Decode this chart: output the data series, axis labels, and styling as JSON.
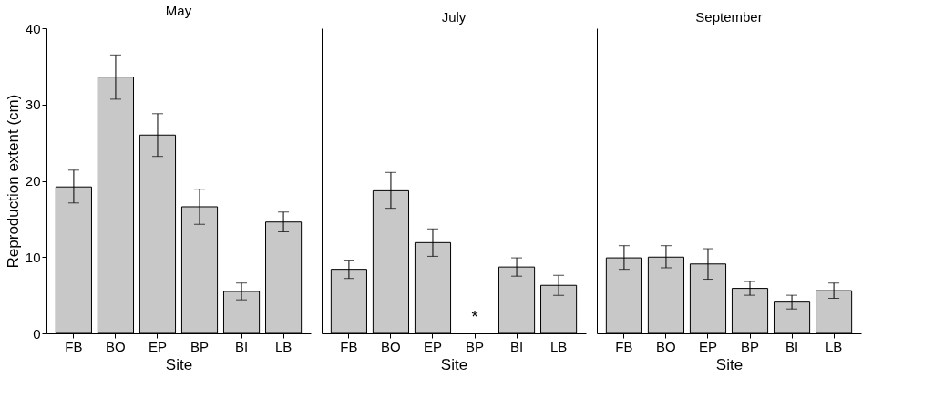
{
  "chart_data": [
    {
      "type": "bar",
      "title": "May",
      "xlabel": "Site",
      "ylabel": "Reproduction extent (cm)",
      "categories": [
        "FB",
        "BO",
        "EP",
        "BP",
        "BI",
        "LB"
      ],
      "values": [
        19.2,
        33.6,
        26.0,
        16.6,
        5.5,
        14.6
      ],
      "errors": [
        [
          17.1,
          21.4
        ],
        [
          30.7,
          36.5
        ],
        [
          23.2,
          28.8
        ],
        [
          14.3,
          18.9
        ],
        [
          4.4,
          6.6
        ],
        [
          13.3,
          15.9
        ]
      ],
      "color": "#c8c8c8",
      "ylim": [
        0,
        40
      ],
      "yticks": [
        0,
        10,
        20,
        30,
        40
      ],
      "grid": false
    },
    {
      "type": "bar",
      "title": "July",
      "xlabel": "Site",
      "categories": [
        "FB",
        "BO",
        "EP",
        "BP",
        "BI",
        "LB"
      ],
      "values": [
        8.4,
        18.7,
        11.9,
        null,
        8.7,
        6.3
      ],
      "errors": [
        [
          7.2,
          9.6
        ],
        [
          16.4,
          21.1
        ],
        [
          10.1,
          13.7
        ],
        null,
        [
          7.5,
          9.9
        ],
        [
          5.0,
          7.6
        ]
      ],
      "color": "#c8c8c8",
      "ylim": [
        0,
        40
      ],
      "yticks": [
        0,
        10,
        20,
        30,
        40
      ],
      "tick_labels": "x",
      "grid": false,
      "annotations": [
        "*"
      ]
    },
    {
      "type": "bar",
      "title": "September",
      "xlabel": "Site",
      "categories": [
        "FB",
        "BO",
        "EP",
        "BP",
        "BI",
        "LB"
      ],
      "values": [
        9.9,
        10.0,
        9.1,
        5.9,
        4.1,
        5.6
      ],
      "errors": [
        [
          8.4,
          11.5
        ],
        [
          8.6,
          11.5
        ],
        [
          7.1,
          11.1
        ],
        [
          5.0,
          6.8
        ],
        [
          3.2,
          5.0
        ],
        [
          4.6,
          6.6
        ]
      ],
      "color": "#c8c8c8",
      "ylim": [
        0,
        40
      ],
      "yticks": [
        0,
        10,
        20,
        30,
        40
      ],
      "tick_labels": "x",
      "grid": false
    }
  ]
}
